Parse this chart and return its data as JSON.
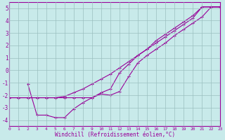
{
  "xlabel": "Windchill (Refroidissement éolien,°C)",
  "bg_color": "#c8eaea",
  "line_color": "#990099",
  "grid_color": "#9bbfbf",
  "xlim": [
    0,
    23
  ],
  "ylim": [
    -4.5,
    5.5
  ],
  "xticks": [
    0,
    1,
    2,
    3,
    4,
    5,
    6,
    7,
    8,
    9,
    10,
    11,
    12,
    13,
    14,
    15,
    16,
    17,
    18,
    19,
    20,
    21,
    22,
    23
  ],
  "yticks": [
    -4,
    -3,
    -2,
    -1,
    0,
    1,
    2,
    3,
    4,
    5
  ],
  "line1_x": [
    0,
    1,
    2,
    3,
    4,
    5,
    6,
    7,
    8,
    9,
    10,
    11,
    12,
    13,
    14,
    15,
    16,
    17,
    18,
    19,
    20,
    21,
    22,
    23
  ],
  "line1_y": [
    -2.2,
    -2.2,
    -2.2,
    -2.2,
    -2.2,
    -2.2,
    -2.1,
    -1.8,
    -1.5,
    -1.1,
    -0.7,
    -0.3,
    0.2,
    0.7,
    1.2,
    1.7,
    2.2,
    2.7,
    3.2,
    3.7,
    4.2,
    5.1,
    5.1,
    5.1
  ],
  "line2_x": [
    2,
    3,
    4,
    5,
    6,
    7,
    8,
    9,
    10,
    11,
    12,
    13,
    14,
    15,
    16,
    17,
    18,
    19,
    20,
    21,
    22,
    23
  ],
  "line2_y": [
    -1.1,
    -3.6,
    -3.6,
    -3.8,
    -3.8,
    -3.1,
    -2.6,
    -2.2,
    -1.9,
    -2.0,
    -1.7,
    -0.5,
    0.6,
    1.2,
    1.7,
    2.2,
    2.8,
    3.3,
    3.8,
    4.3,
    5.1,
    5.1
  ],
  "line3_x": [
    0,
    1,
    2,
    3,
    4,
    5,
    6,
    7,
    8,
    9,
    10,
    11,
    12,
    13,
    14,
    15,
    16,
    17,
    18,
    19,
    20,
    21,
    22,
    23
  ],
  "line3_y": [
    -2.2,
    -2.2,
    -2.2,
    -2.2,
    -2.2,
    -2.2,
    -2.2,
    -2.2,
    -2.2,
    -2.2,
    -1.8,
    -1.5,
    -0.2,
    0.5,
    1.2,
    1.7,
    2.4,
    2.9,
    3.4,
    3.9,
    4.4,
    5.1,
    5.1,
    5.1
  ]
}
